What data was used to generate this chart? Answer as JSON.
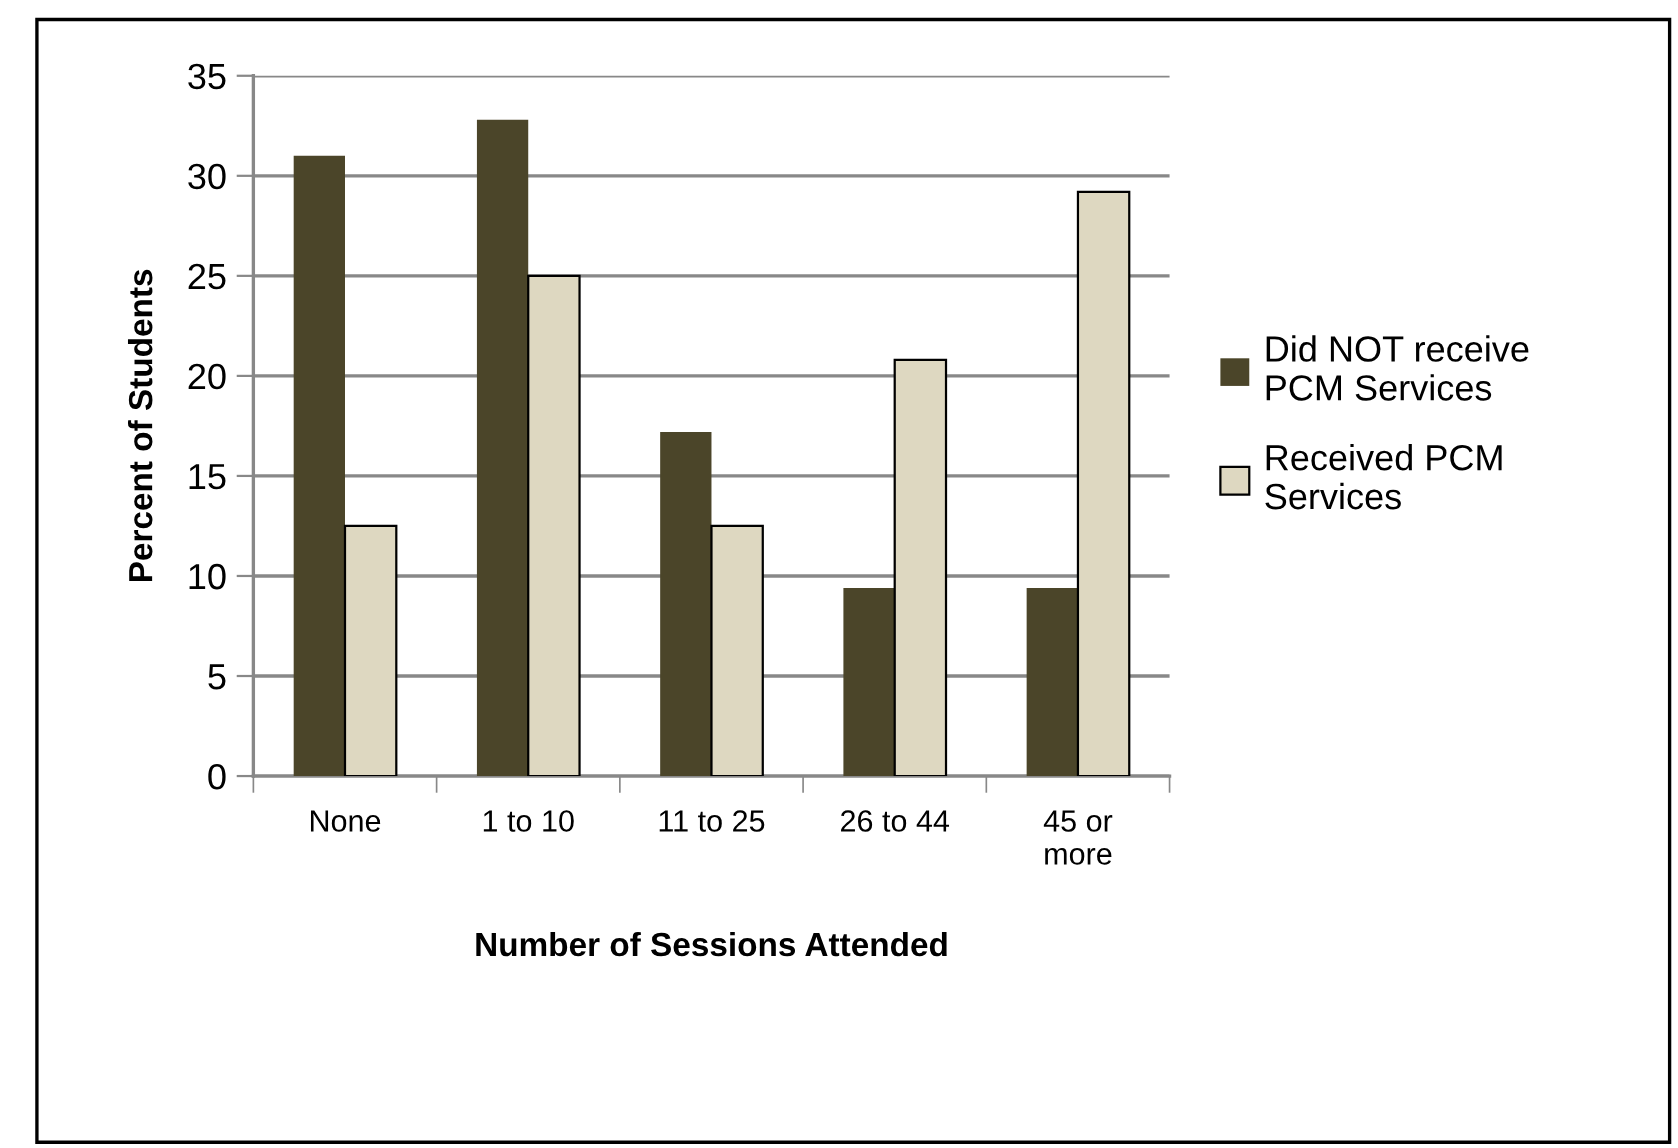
{
  "chart_data": {
    "type": "bar",
    "xlabel": "Number of Sessions Attended",
    "ylabel": "Percent of Students",
    "categories": [
      "None",
      "1 to 10",
      "11 to 25",
      "26 to 44",
      "45 or\nmore"
    ],
    "series": [
      {
        "name": "Did NOT receive\nPCM Services",
        "color": "#4b4529",
        "values": [
          31.0,
          32.8,
          17.2,
          9.4,
          9.4
        ]
      },
      {
        "name": "Received PCM\nServices",
        "color": "#ded8c1",
        "values": [
          12.5,
          25.0,
          12.5,
          20.8,
          29.2
        ]
      }
    ],
    "ylim": [
      0,
      35
    ],
    "yticks": [
      0,
      5,
      10,
      15,
      20,
      25,
      30,
      35
    ],
    "grid": "y",
    "legend": "right"
  }
}
